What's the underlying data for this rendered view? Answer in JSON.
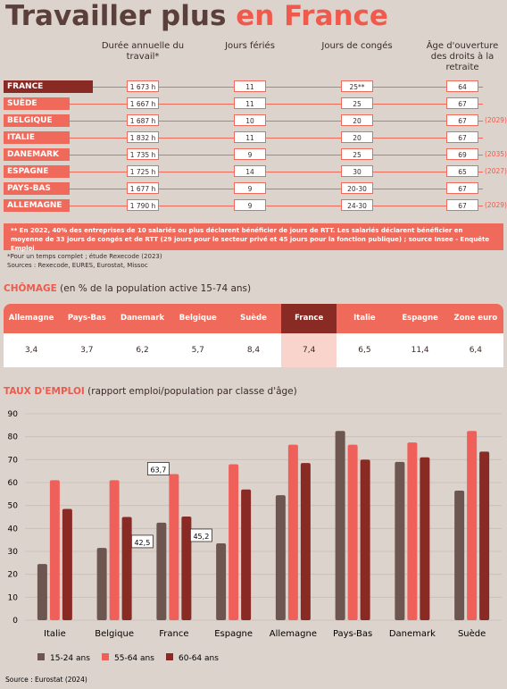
{
  "header": {
    "title_main": "Travailler plus",
    "title_highlight": "en France"
  },
  "comparison": {
    "columns": [
      "Durée annuelle du travail*",
      "Jours fériés",
      "Jours de congés",
      "Âge d'ouverture des droits à la retraite"
    ],
    "rows": [
      {
        "country": "FRANCE",
        "hours": "1 673 h",
        "holidays": "11",
        "leave": "25**",
        "age": "64"
      },
      {
        "country": "SUÈDE",
        "hours": "1 667 h",
        "holidays": "11",
        "leave": "25",
        "age": "67"
      },
      {
        "country": "BELGIQUE",
        "hours": "1 687 h",
        "holidays": "10",
        "leave": "20",
        "age": "67",
        "age_note": "(2029)"
      },
      {
        "country": "ITALIE",
        "hours": "1 832 h",
        "holidays": "11",
        "leave": "20",
        "age": "67"
      },
      {
        "country": "DANEMARK",
        "hours": "1 735 h",
        "holidays": "9",
        "leave": "25",
        "age": "69",
        "age_note": "(2035)"
      },
      {
        "country": "ESPAGNE",
        "hours": "1 725 h",
        "holidays": "14",
        "leave": "30",
        "age": "65",
        "age_note": "(2027)"
      },
      {
        "country": "PAYS-BAS",
        "hours": "1 677 h",
        "holidays": "9",
        "leave": "20-30",
        "age": "67"
      },
      {
        "country": "ALLEMAGNE",
        "hours": "1 790 h",
        "holidays": "9",
        "leave": "24-30",
        "age": "67",
        "age_note": "(2029)"
      }
    ]
  },
  "notes": {
    "rtt": "** En 2022, 40% des entreprises de 10 salariés ou plus déclarent bénéficier de jours de RTT. Les salariés déclarent bénéficier en moyenne de 33 jours de congés et de RTT (29 jours pour le secteur privé et 45 jours pour la fonction publique) ; source Insee - Enquête Emploi",
    "footnote": "*Pour un temps complet ; étude Rexecode (2023)",
    "sources": "Sources : Rexecode, EURES, Eurostat, Missoc"
  },
  "chomage": {
    "title": "CHÔMAGE",
    "subtitle": "(en % de la population active 15-74 ans)",
    "headers": [
      "Allemagne",
      "Pays-Bas",
      "Danemark",
      "Belgique",
      "Suède",
      "France",
      "Italie",
      "Espagne",
      "Zone euro"
    ],
    "values": [
      "3,4",
      "3,7",
      "6,2",
      "5,7",
      "8,4",
      "7,4",
      "6,5",
      "11,4",
      "6,4"
    ]
  },
  "chart_data": {
    "type": "bar",
    "title": "TAUX D'EMPLOI",
    "subtitle": "(rapport emploi/population par classe d'âge)",
    "categories": [
      "Italie",
      "Belgique",
      "France",
      "Espagne",
      "Allemagne",
      "Pays-Bas",
      "Danemark",
      "Suède"
    ],
    "series": [
      {
        "name": "15-24 ans",
        "color": "#6d5650",
        "values": [
          24.5,
          31.5,
          42.5,
          33.5,
          54.5,
          82.5,
          69,
          56.5
        ],
        "value_labels": [
          null,
          null,
          "42,5",
          null,
          null,
          null,
          null,
          null
        ]
      },
      {
        "name": "55-64 ans",
        "color": "#f0605a",
        "values": [
          61,
          61,
          63.7,
          68,
          76.5,
          76.5,
          77.5,
          82.5
        ],
        "value_labels": [
          null,
          null,
          "63,7",
          null,
          null,
          null,
          null,
          null
        ]
      },
      {
        "name": "60-64 ans",
        "color": "#8a2a24",
        "values": [
          48.5,
          45,
          45.2,
          57,
          68.5,
          70,
          71,
          73.5
        ],
        "value_labels": [
          null,
          null,
          "45,2",
          null,
          null,
          null,
          null,
          null
        ]
      }
    ],
    "ylim": [
      0,
      90
    ],
    "yticks": [
      0,
      10,
      20,
      30,
      40,
      50,
      60,
      70,
      80,
      90
    ],
    "grid": true,
    "source": "Source : Eurostat (2024)"
  }
}
